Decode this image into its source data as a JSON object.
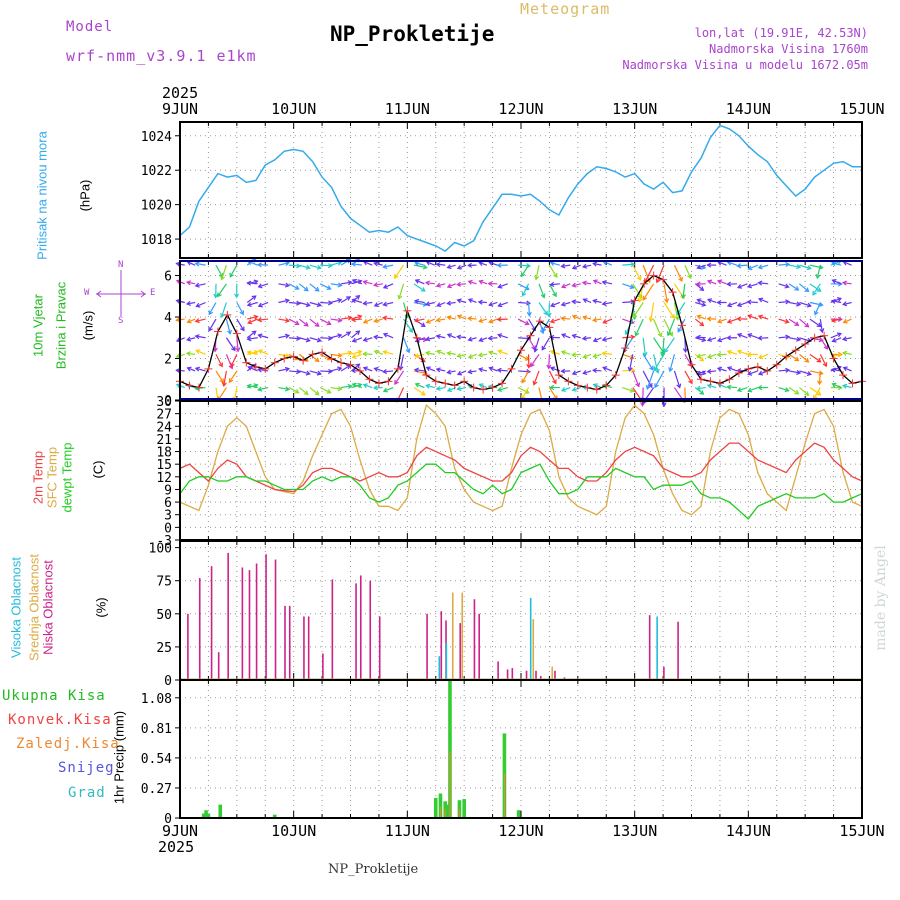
{
  "header": {
    "model_label": "Model",
    "model_name": "wrf-nmm_v3.9.1 e1km",
    "kind": "Meteogram",
    "title": "NP_Prokletije",
    "lonlat": "lon,lat (19.91E, 42.53N)",
    "elevation": "Nadmorska Visina 1760m",
    "model_elevation": "Nadmorska Visina u modelu 1672.05m"
  },
  "footer": {
    "station": "NP_Prokletije",
    "credit": "made by Angel"
  },
  "colors": {
    "pressure": "#33aaee",
    "temp2m": "#ee4444",
    "sfc": "#ddaa44",
    "dew": "#22cc22",
    "cloud_high": "#22bbdd",
    "cloud_mid": "#ddaa44",
    "cloud_low": "#cc2288",
    "precip_total": "#33cc33",
    "precip_conv": "#ee4444",
    "precip_strat": "#ee8833",
    "snow": "#5555dd",
    "hail": "#33bbbb",
    "purple_text": "#aa44cc"
  },
  "chart_data": [
    {
      "type": "line",
      "panel": "pressure",
      "ylabel_left": "Pritisak na nivou mora",
      "ylabel_units": "(hPa)",
      "x_start_year": "2025",
      "x_end_year": "2025",
      "x_ticks": [
        "9JUN",
        "10JUN",
        "11JUN",
        "12JUN",
        "13JUN",
        "14JUN",
        "15JUN"
      ],
      "ylim": [
        1016.9,
        1024.8
      ],
      "yticks": [
        1018,
        1020,
        1022,
        1024
      ],
      "x_hours": [
        0,
        2,
        4,
        6,
        8,
        10,
        12,
        14,
        16,
        18,
        20,
        22,
        24,
        26,
        28,
        30,
        32,
        34,
        36,
        38,
        40,
        42,
        44,
        46,
        48,
        50,
        52,
        54,
        56,
        58,
        60,
        62,
        64,
        66,
        68,
        70,
        72,
        74,
        76,
        78,
        80,
        82,
        84,
        86,
        88,
        90,
        92,
        94,
        96,
        98,
        100,
        102,
        104,
        106,
        108,
        110,
        112,
        114,
        116,
        118,
        120,
        122,
        124,
        126,
        128,
        130,
        132,
        134,
        136,
        138,
        140,
        142,
        144
      ],
      "series": [
        {
          "values": [
            1018.2,
            1018.7,
            1020.2,
            1021.0,
            1021.8,
            1021.6,
            1021.7,
            1021.3,
            1021.4,
            1022.3,
            1022.6,
            1023.1,
            1023.2,
            1023.1,
            1022.5,
            1021.6,
            1021.0,
            1019.9,
            1019.2,
            1018.8,
            1018.4,
            1018.5,
            1018.4,
            1018.7,
            1018.2,
            1018.0,
            1017.8,
            1017.6,
            1017.3,
            1017.8,
            1017.6,
            1017.9,
            1019.0,
            1019.8,
            1020.6,
            1020.6,
            1020.5,
            1020.6,
            1020.2,
            1019.7,
            1019.4,
            1020.4,
            1021.2,
            1021.8,
            1022.2,
            1022.1,
            1021.9,
            1021.6,
            1021.8,
            1021.2,
            1020.9,
            1021.3,
            1020.7,
            1020.8,
            1021.9,
            1022.7,
            1023.9,
            1024.6,
            1024.4,
            1024.0,
            1023.4,
            1022.9,
            1022.5,
            1021.7,
            1021.1,
            1020.5,
            1020.9,
            1021.6,
            1022.0,
            1022.4,
            1022.5,
            1022.2,
            1022.2
          ]
        }
      ]
    },
    {
      "type": "line",
      "panel": "wind",
      "ylabel_left_1": "10m Vjetar",
      "ylabel_left_2": "Brzina i Pravac",
      "ylabel_units": "(m/s)",
      "compass": {
        "n": "N",
        "s": "S",
        "w": "W",
        "e": "E"
      },
      "ylim": [
        0,
        6.7
      ],
      "yticks": [
        0,
        2,
        4,
        6
      ],
      "x_hours": [
        0,
        2,
        4,
        6,
        8,
        10,
        12,
        14,
        16,
        18,
        20,
        22,
        24,
        26,
        28,
        30,
        32,
        34,
        36,
        38,
        40,
        42,
        44,
        46,
        48,
        50,
        52,
        54,
        56,
        58,
        60,
        62,
        64,
        66,
        68,
        70,
        72,
        74,
        76,
        78,
        80,
        82,
        84,
        86,
        88,
        90,
        92,
        94,
        96,
        98,
        100,
        102,
        104,
        106,
        108,
        110,
        112,
        114,
        116,
        118,
        120,
        122,
        124,
        126,
        128,
        130,
        132,
        134,
        136,
        138,
        140,
        142,
        144
      ],
      "series": [
        {
          "name": "wind",
          "values": [
            0.9,
            0.7,
            0.6,
            1.5,
            3.3,
            4.1,
            3.2,
            1.8,
            1.6,
            1.5,
            1.8,
            2.0,
            2.1,
            1.9,
            2.2,
            2.3,
            2.0,
            1.8,
            1.7,
            1.4,
            1.0,
            0.8,
            0.9,
            1.5,
            4.3,
            3.0,
            1.2,
            0.9,
            0.8,
            0.7,
            0.9,
            0.6,
            0.5,
            0.6,
            0.8,
            1.5,
            2.4,
            3.1,
            3.8,
            3.5,
            1.2,
            0.9,
            0.7,
            0.6,
            0.5,
            0.7,
            1.2,
            2.5,
            4.8,
            5.6,
            6.0,
            5.8,
            5.2,
            3.6,
            1.7,
            1.0,
            0.9,
            0.8,
            1.0,
            1.3,
            1.5,
            1.6,
            1.4,
            1.7,
            2.1,
            2.4,
            2.7,
            3.0,
            3.1,
            2.0,
            1.2,
            0.8,
            0.9
          ]
        }
      ]
    },
    {
      "type": "line",
      "panel": "temperature",
      "series_labels": [
        "2m Temp",
        "SFC Temp",
        "dewpt Temp"
      ],
      "ylabel_units": "(C)",
      "ylim": [
        -3,
        30
      ],
      "yticks": [
        -3,
        0,
        3,
        6,
        9,
        12,
        15,
        18,
        21,
        24,
        27,
        30
      ],
      "x_hours": [
        0,
        2,
        4,
        6,
        8,
        10,
        12,
        14,
        16,
        18,
        20,
        22,
        24,
        26,
        28,
        30,
        32,
        34,
        36,
        38,
        40,
        42,
        44,
        46,
        48,
        50,
        52,
        54,
        56,
        58,
        60,
        62,
        64,
        66,
        68,
        70,
        72,
        74,
        76,
        78,
        80,
        82,
        84,
        86,
        88,
        90,
        92,
        94,
        96,
        98,
        100,
        102,
        104,
        106,
        108,
        110,
        112,
        114,
        116,
        118,
        120,
        122,
        124,
        126,
        128,
        130,
        132,
        134,
        136,
        138,
        140,
        142,
        144
      ],
      "series": [
        {
          "name": "2m Temp",
          "values": [
            14,
            15,
            13,
            11,
            14,
            16,
            15,
            12,
            11,
            10,
            9,
            8.7,
            8.5,
            10,
            13,
            14,
            14,
            13,
            12,
            11,
            12,
            13,
            12,
            12,
            13,
            17,
            19,
            18,
            17,
            16,
            14,
            13,
            12,
            11,
            11,
            13,
            17,
            19,
            18,
            16,
            14,
            14,
            12,
            11,
            11,
            13,
            16,
            18,
            19,
            18,
            17,
            14,
            13,
            12,
            12,
            13,
            16,
            18,
            20,
            20,
            18,
            16,
            15,
            14,
            13,
            16,
            18,
            20,
            19,
            16,
            14,
            12,
            11
          ]
        },
        {
          "name": "SFC Temp",
          "values": [
            6,
            5,
            4,
            10,
            18,
            24,
            26,
            24,
            18,
            12,
            9,
            8.5,
            8,
            11,
            17,
            22,
            27,
            28,
            24,
            16,
            9,
            5,
            5,
            4,
            7,
            21,
            29,
            27,
            24,
            14,
            9,
            6,
            5,
            4,
            5,
            14,
            22,
            27,
            28,
            23,
            12,
            7,
            5,
            4,
            3,
            5,
            18,
            26,
            29,
            27,
            22,
            14,
            8,
            4,
            3,
            5,
            18,
            26,
            28,
            27,
            22,
            13,
            8,
            6,
            4,
            12,
            20,
            27,
            28,
            24,
            13,
            6,
            5
          ]
        },
        {
          "name": "dewpt Temp",
          "values": [
            8,
            11,
            12,
            12,
            11,
            11,
            12,
            12,
            11,
            11,
            10,
            9,
            9,
            9,
            11,
            12,
            11,
            12,
            12,
            10,
            7,
            6,
            7,
            10,
            11,
            13,
            15,
            15,
            13,
            13,
            11,
            9,
            8,
            10,
            8,
            9,
            13,
            14,
            15,
            11,
            8,
            8,
            9,
            12,
            12,
            12,
            14,
            13,
            12,
            12,
            9,
            10,
            10,
            10,
            11,
            8,
            7,
            7,
            6,
            4,
            2,
            5,
            6,
            7,
            8,
            7,
            7,
            7,
            8,
            6,
            6,
            7,
            8
          ]
        }
      ]
    },
    {
      "type": "bar",
      "panel": "clouds",
      "series_labels": [
        "Visoka Oblacnost",
        "Srednja Oblacnost",
        "Niska Oblacnost"
      ],
      "ylabel_units": "(%)",
      "ylim": [
        0,
        105
      ],
      "yticks": [
        0,
        25,
        50,
        75,
        100
      ],
      "low_hours": [
        1.5,
        4,
        6.5,
        8,
        10,
        13,
        14.5,
        16,
        18,
        20,
        22,
        23,
        26,
        27,
        30,
        32,
        37,
        38,
        40,
        42,
        52,
        55,
        56,
        59,
        62,
        63,
        67,
        69,
        70,
        73,
        75,
        76,
        78,
        79,
        81,
        99,
        102,
        105
      ],
      "low_values": [
        50,
        77,
        86,
        21,
        96,
        85,
        83,
        88,
        95,
        91,
        56,
        56,
        48,
        48,
        20,
        76,
        73,
        79,
        75,
        48,
        50,
        52,
        45,
        43,
        61,
        50,
        14,
        8,
        9,
        7,
        7,
        3,
        1,
        7,
        2,
        49,
        10,
        44
      ],
      "mid_hours": [
        57,
        59,
        74,
        78
      ],
      "mid_values": [
        66,
        66,
        46,
        10
      ],
      "high_hours": [
        55,
        56.5,
        74.3,
        101
      ],
      "high_values": [
        18,
        28,
        62,
        48
      ]
    },
    {
      "type": "bar",
      "panel": "precip",
      "series_labels": [
        "Ukupna Kisa",
        "Konvek.Kisa",
        "Zaledj.Kisa",
        "Snijeg",
        "Grad"
      ],
      "ylabel_units": "1hr Precip (mm)",
      "ylim": [
        0,
        1.24
      ],
      "yticks": [
        0,
        0.27,
        0.54,
        0.81,
        1.08
      ],
      "total_hours": [
        5,
        5.5,
        6,
        8.5,
        20,
        54,
        55,
        56,
        56.5,
        57,
        59,
        60,
        68.5,
        71.5
      ],
      "total_values": [
        0.04,
        0.07,
        0.04,
        0.12,
        0.03,
        0.18,
        0.22,
        0.15,
        0.12,
        1.24,
        0.16,
        0.17,
        0.76,
        0.07
      ],
      "conv_hours": [
        55,
        56,
        57,
        59,
        68.5
      ],
      "conv_values": [
        0.1,
        0.08,
        0.6,
        0.08,
        0.4
      ]
    }
  ]
}
